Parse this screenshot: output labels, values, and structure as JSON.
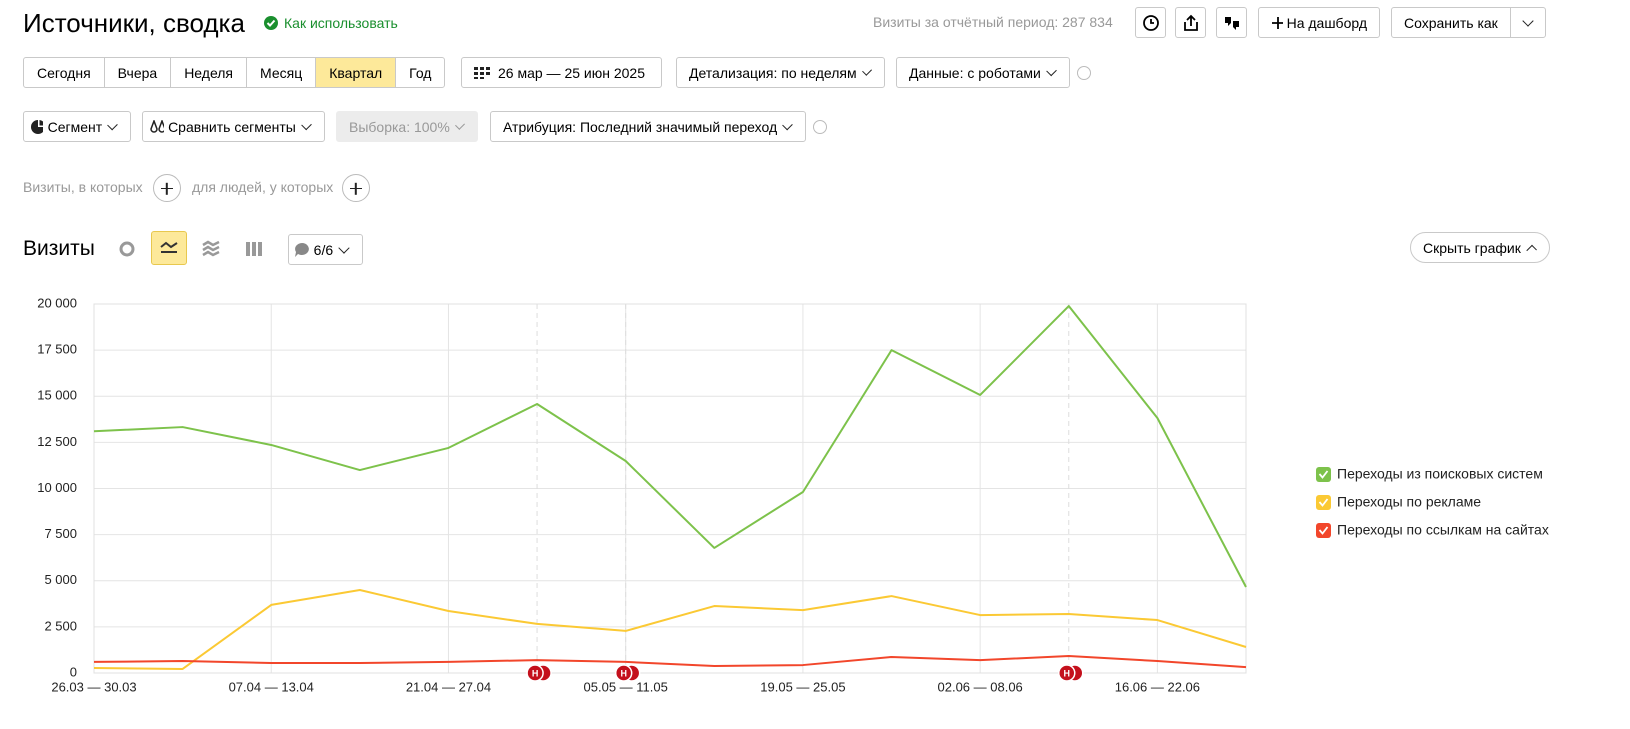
{
  "header": {
    "title": "Источники, сводка",
    "help": "Как использовать",
    "summary": "Визиты за отчётный период: 287 834",
    "dashboard": "На дашборд",
    "save": "Сохранить как"
  },
  "periods": {
    "items": [
      "Сегодня",
      "Вчера",
      "Неделя",
      "Месяц",
      "Квартал",
      "Год"
    ],
    "active": 4
  },
  "toolbar": {
    "date_range": "26 мар — 25 июн 2025",
    "detail": "Детализация: по неделям",
    "data_mode": "Данные: с роботами",
    "segment": "Сегмент",
    "compare": "Сравнить сегменты",
    "sample": "Выборка: 100%",
    "attribution": "Атрибуция: Последний значимый переход"
  },
  "filters": {
    "visits": "Визиты, в которых",
    "people": "для людей, у которых"
  },
  "chart_controls": {
    "series_count": "6/6",
    "hide": "Скрыть график"
  },
  "chart_data": {
    "type": "line",
    "title": "Визиты",
    "categories": [
      "26.03 — 30.03",
      null,
      "07.04 — 13.04",
      null,
      "21.04 — 27.04",
      null,
      "05.05 — 11.05",
      null,
      "19.05 — 25.05",
      null,
      "02.06 — 08.06",
      null,
      "16.06 — 22.06",
      null
    ],
    "series": [
      {
        "name": "Переходы из поисковых систем",
        "color": "#7dc24b",
        "values": [
          13100,
          13330,
          12360,
          11000,
          12200,
          14580,
          11490,
          6780,
          9810,
          17500,
          15070,
          19890,
          13820,
          4660
        ]
      },
      {
        "name": "Переходы по рекламе",
        "color": "#fbc934",
        "values": [
          270,
          220,
          3690,
          4500,
          3360,
          2660,
          2280,
          3630,
          3410,
          4170,
          3140,
          3200,
          2870,
          1410
        ]
      },
      {
        "name": "Переходы по ссылкам на сайтах",
        "color": "#f2462b",
        "values": [
          600,
          650,
          540,
          540,
          600,
          700,
          600,
          380,
          430,
          870,
          700,
          920,
          650,
          320
        ]
      }
    ],
    "ylim": [
      0,
      20000
    ],
    "yticks": [
      0,
      {
        "value": 2500,
        "label": "2 500"
      },
      {
        "value": 5000,
        "label": "5 000"
      },
      {
        "value": 7500,
        "label": "7 500"
      },
      {
        "value": 10000,
        "label": "10 000"
      },
      {
        "value": 12500,
        "label": "12 500"
      },
      {
        "value": 15000,
        "label": "15 000"
      },
      {
        "value": 17500,
        "label": "17 500"
      },
      {
        "value": 20000,
        "label": "20 000"
      }
    ],
    "grid": true,
    "legend": "right",
    "annotations": [
      {
        "index": 5,
        "label": "Н"
      },
      {
        "index": 6,
        "label": "Н"
      },
      {
        "index": 11,
        "label": "Н"
      }
    ]
  }
}
